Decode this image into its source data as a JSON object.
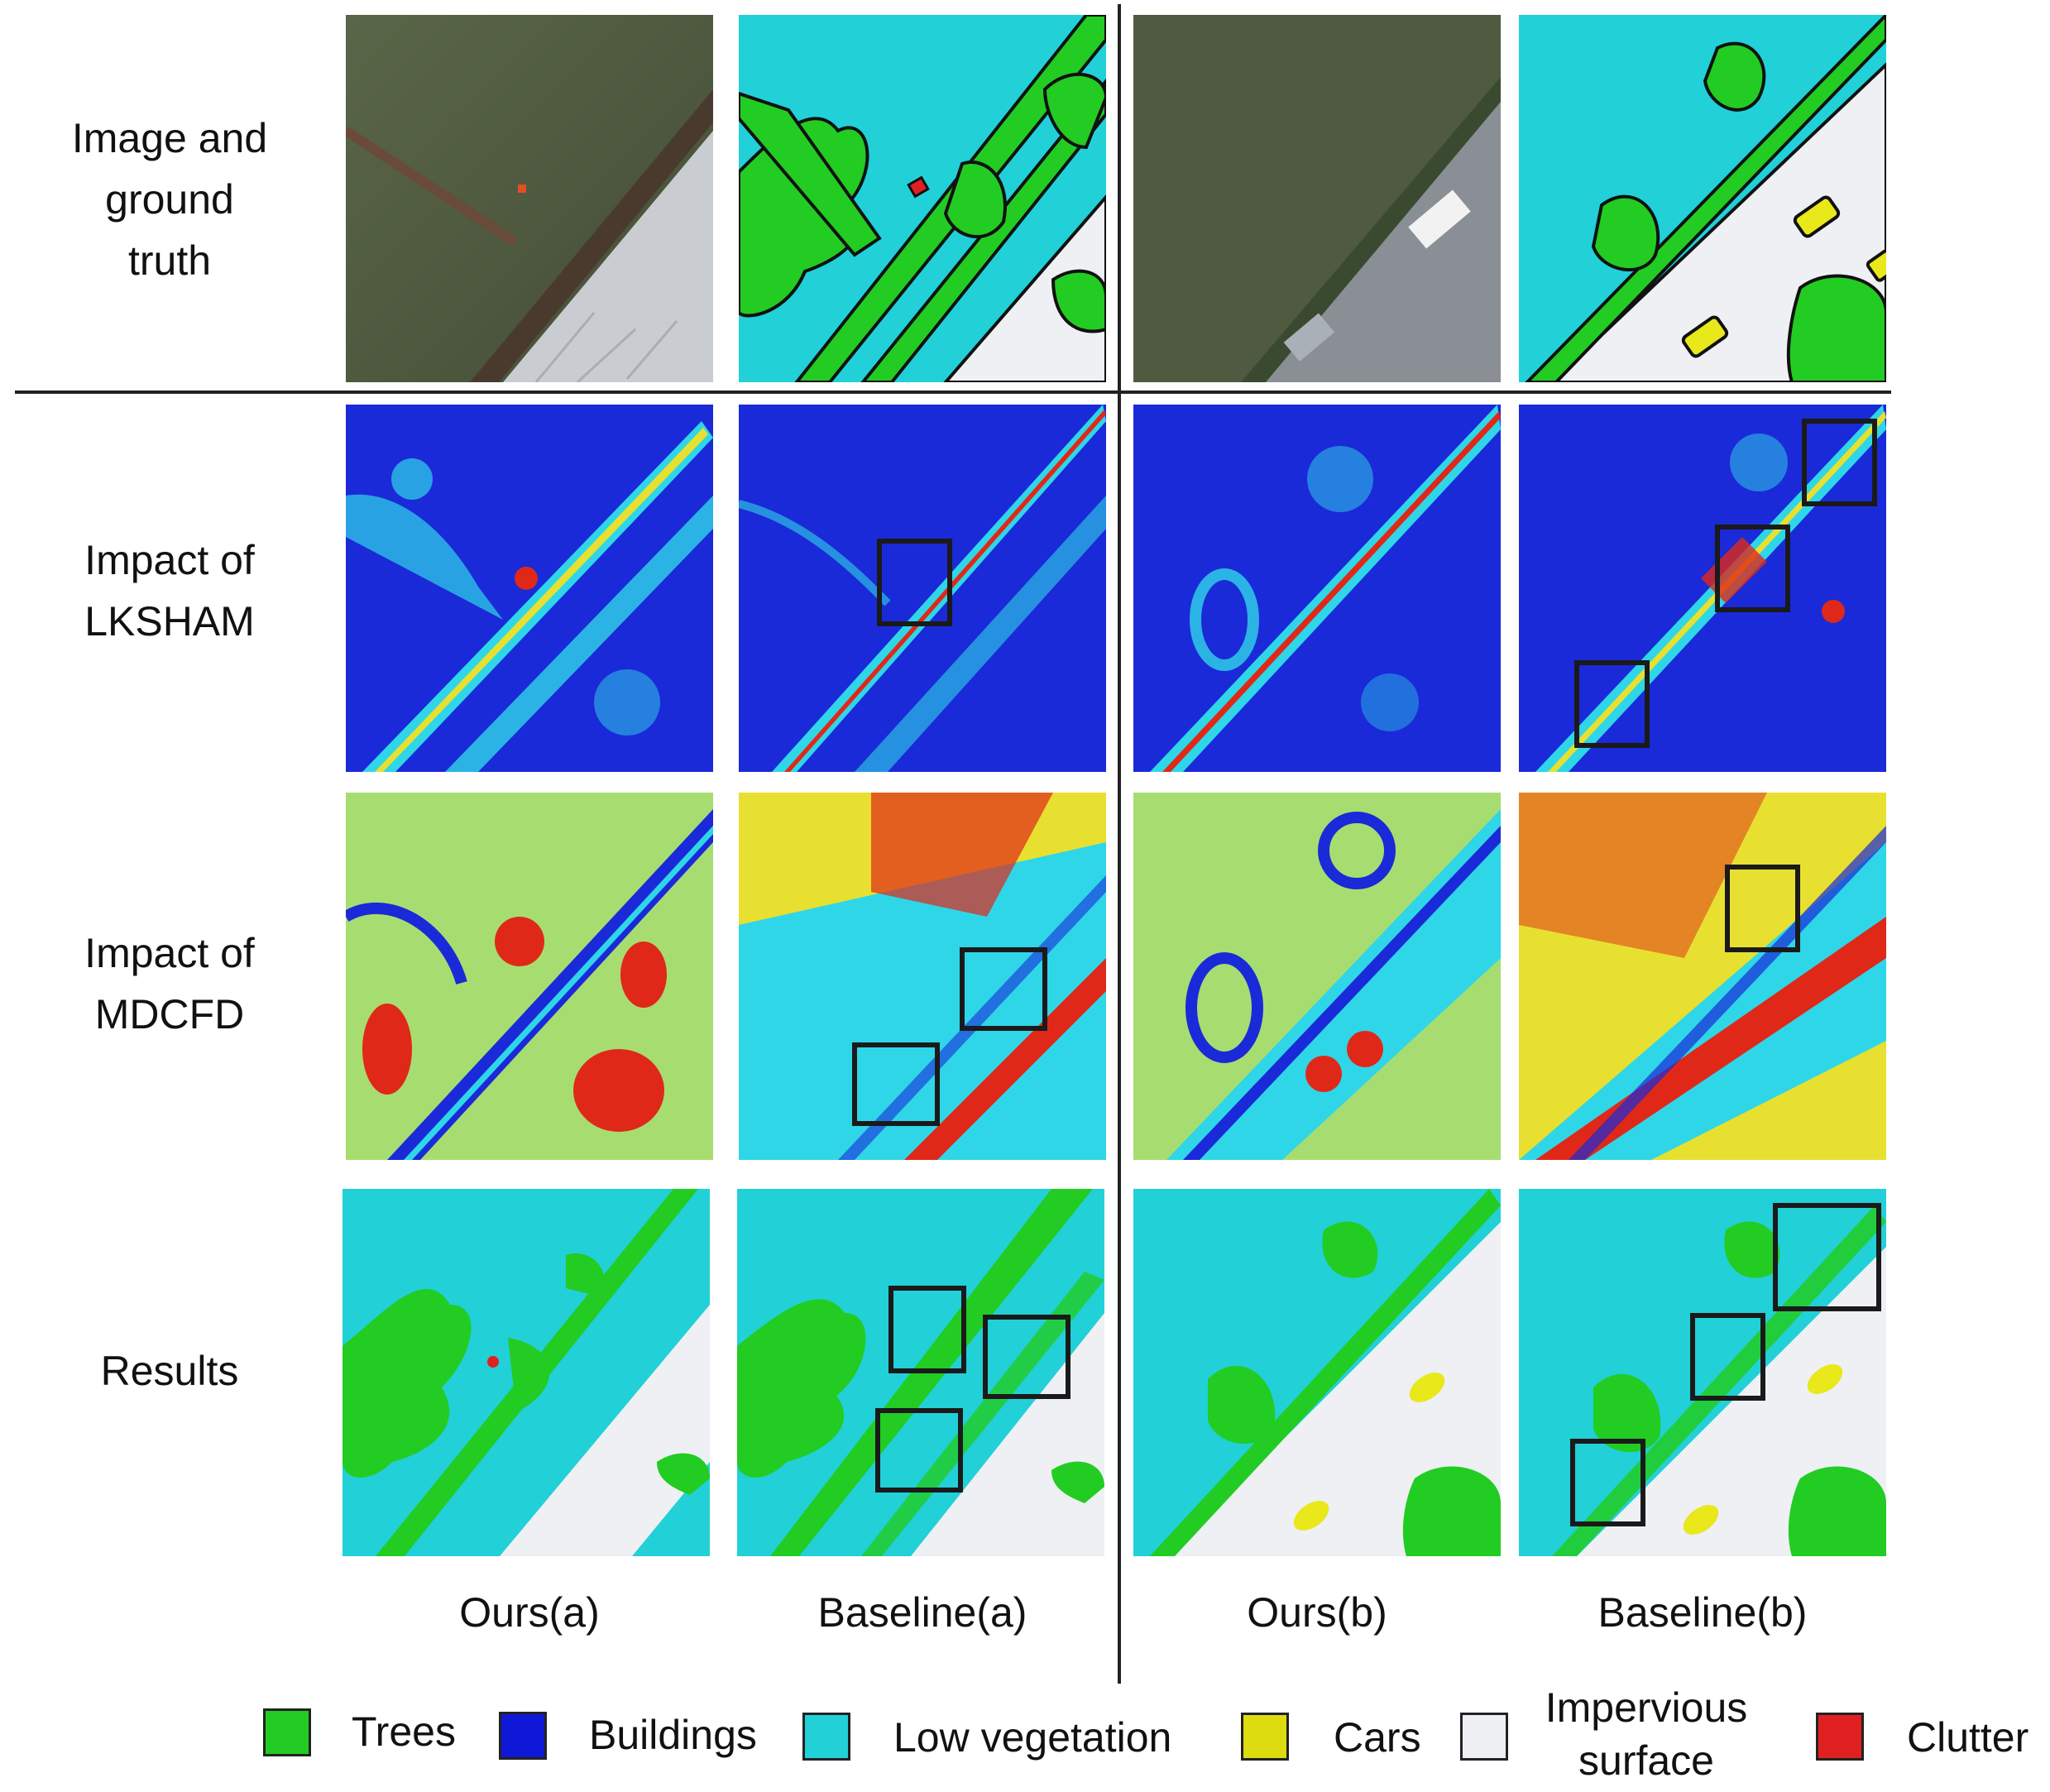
{
  "row_labels": {
    "image_gt": "Image and\nground\ntruth",
    "lksham": "Impact of\nLKSHAM",
    "mdcfd": "Impact of\nMDCFD",
    "results": "Results"
  },
  "columns": {
    "ours_a": "Ours(a)",
    "baseline_a": "Baseline(a)",
    "ours_b": "Ours(b)",
    "baseline_b": "Baseline(b)"
  },
  "legend": [
    {
      "label": "Trees",
      "color": "#22cc22"
    },
    {
      "label": "Buildings",
      "color": "#1018d8"
    },
    {
      "label": "Low vegetation",
      "color": "#22d0d8"
    },
    {
      "label": "Cars",
      "color": "#dcdc10"
    },
    {
      "label": "Impervious surface",
      "color": "#eef0f4"
    },
    {
      "label": "Clutter",
      "color": "#e02020"
    }
  ],
  "colors": {
    "trees": "#22cc22",
    "low_vegetation": "#22d0d8",
    "impervious": "#eef0f4",
    "cars": "#e8e81a",
    "clutter": "#e02020",
    "heat_low": "#1a2ad8",
    "heat_mid": "#2fd6e8",
    "heat_high": "#e8e030",
    "heat_max": "#e02818",
    "highlight_box": "#1a1a1a"
  }
}
